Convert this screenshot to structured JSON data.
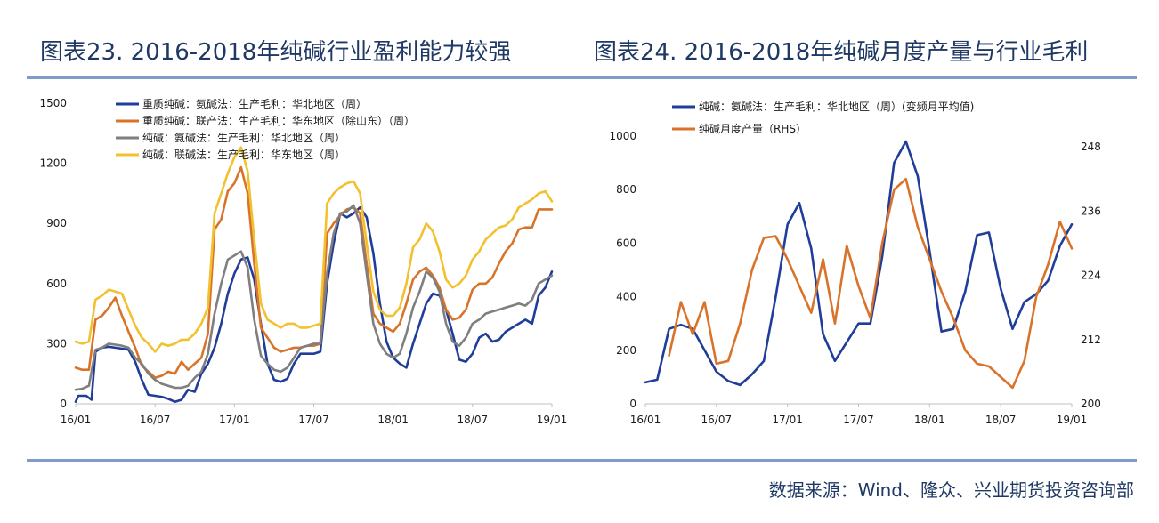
{
  "titles": {
    "left": "图表23. 2016-2018年纯碱行业盈利能力较强",
    "right": "图表24. 2016-2018年纯碱月度产量与行业毛利"
  },
  "source": "数据来源：Wind、隆众、兴业期货投资咨询部",
  "chart_data": [
    {
      "type": "line",
      "title": "图表23. 2016-2018年纯碱行业盈利能力较强",
      "x_labels": [
        "16/01",
        "16/07",
        "17/01",
        "17/07",
        "18/01",
        "18/07",
        "19/01"
      ],
      "x_range": [
        0,
        36
      ],
      "ylim": [
        0,
        1500
      ],
      "yticks": [
        0,
        300,
        600,
        900,
        1200,
        1500
      ],
      "legend_position": "top-left",
      "series": [
        {
          "name": "重质纯碱：氨碱法：生产毛利：华北地区（周）",
          "color": "#1f3d99",
          "x": [
            0,
            0.2,
            0.8,
            1.2,
            1.5,
            2,
            2.5,
            3,
            3.5,
            4,
            4.5,
            5,
            5.5,
            6,
            6.5,
            7,
            7.5,
            8,
            8.5,
            9,
            9.5,
            10,
            10.5,
            11,
            11.5,
            12,
            12.5,
            13,
            13.5,
            14,
            14.5,
            15,
            15.5,
            16,
            16.5,
            17,
            17.5,
            18,
            18.5,
            19,
            19.5,
            20,
            20.5,
            21,
            21.5,
            22,
            22.5,
            23,
            23.5,
            24,
            24.5,
            25,
            25.5,
            26,
            26.5,
            27,
            27.5,
            28,
            28.5,
            29,
            29.5,
            30,
            30.5,
            31,
            31.5,
            32,
            32.5,
            33,
            33.5,
            34,
            34.5,
            35,
            35.5,
            36
          ],
          "y": [
            10,
            40,
            40,
            20,
            260,
            280,
            285,
            280,
            275,
            270,
            210,
            120,
            45,
            40,
            35,
            25,
            10,
            20,
            70,
            60,
            150,
            200,
            280,
            400,
            550,
            650,
            720,
            730,
            620,
            400,
            200,
            120,
            110,
            125,
            200,
            250,
            250,
            250,
            260,
            600,
            800,
            950,
            930,
            950,
            980,
            930,
            750,
            500,
            310,
            230,
            200,
            180,
            300,
            400,
            500,
            550,
            540,
            470,
            350,
            220,
            210,
            250,
            330,
            350,
            310,
            320,
            360,
            380,
            400,
            420,
            400,
            540,
            580,
            660
          ]
        },
        {
          "name": "重质纯碱：联产法：生产毛利：华东地区（除山东）（周）",
          "color": "#d9732a",
          "x": [
            0,
            0.5,
            1,
            1.5,
            2,
            2.5,
            3,
            3.5,
            4,
            4.5,
            5,
            5.5,
            6,
            6.5,
            7,
            7.5,
            8,
            8.5,
            9,
            9.5,
            10,
            10.5,
            11,
            11.5,
            12,
            12.5,
            13,
            13.5,
            14,
            14.5,
            15,
            15.5,
            16,
            16.5,
            17,
            17.5,
            18,
            18.5,
            19,
            19.5,
            20,
            20.5,
            21,
            21.5,
            22,
            22.5,
            23,
            23.5,
            24,
            24.5,
            25,
            25.5,
            26,
            26.5,
            27,
            27.5,
            28,
            28.5,
            29,
            29.5,
            30,
            30.5,
            31,
            31.5,
            32,
            32.5,
            33,
            33.5,
            34,
            34.5,
            35,
            35.5,
            36
          ],
          "y": [
            180,
            170,
            170,
            420,
            440,
            480,
            530,
            440,
            360,
            280,
            190,
            160,
            130,
            140,
            160,
            150,
            210,
            170,
            200,
            230,
            350,
            870,
            920,
            1060,
            1100,
            1180,
            1050,
            700,
            380,
            330,
            280,
            260,
            270,
            280,
            280,
            290,
            290,
            300,
            850,
            900,
            940,
            970,
            980,
            950,
            700,
            450,
            400,
            380,
            360,
            400,
            500,
            620,
            660,
            680,
            640,
            580,
            470,
            420,
            430,
            470,
            570,
            600,
            600,
            630,
            700,
            760,
            800,
            870,
            880,
            880,
            970,
            970,
            970
          ]
        },
        {
          "name": "纯碱：氨碱法：生产毛利：华北地区（周）",
          "color": "#7f7f7f",
          "x": [
            0,
            0.5,
            1,
            1.5,
            2,
            2.5,
            3,
            3.5,
            4,
            4.5,
            5,
            5.5,
            6,
            6.5,
            7,
            7.5,
            8,
            8.5,
            9,
            9.5,
            10,
            10.5,
            11,
            11.5,
            12,
            12.5,
            13,
            13.5,
            14,
            14.5,
            15,
            15.5,
            16,
            16.5,
            17,
            17.5,
            18,
            18.5,
            19,
            19.5,
            20,
            20.5,
            21,
            21.5,
            22,
            22.5,
            23,
            23.5,
            24,
            24.5,
            25,
            25.5,
            26,
            26.5,
            27,
            27.5,
            28,
            28.5,
            29,
            29.5,
            30,
            30.5,
            31,
            31.5,
            32,
            32.5,
            33,
            33.5,
            34,
            34.5,
            35,
            35.5,
            36
          ],
          "y": [
            70,
            75,
            90,
            270,
            280,
            300,
            295,
            290,
            280,
            230,
            200,
            150,
            120,
            100,
            90,
            80,
            80,
            90,
            130,
            160,
            250,
            450,
            600,
            720,
            740,
            760,
            680,
            420,
            240,
            200,
            170,
            160,
            180,
            230,
            280,
            290,
            300,
            300,
            650,
            850,
            950,
            960,
            990,
            900,
            650,
            400,
            300,
            250,
            230,
            250,
            350,
            480,
            560,
            660,
            630,
            560,
            400,
            310,
            290,
            330,
            400,
            420,
            450,
            460,
            470,
            480,
            490,
            500,
            490,
            520,
            600,
            620,
            640
          ]
        },
        {
          "name": "纯碱：联碱法：生产毛利：华东地区（周）",
          "color": "#f2c12e",
          "x": [
            0,
            0.5,
            1,
            1.5,
            2,
            2.5,
            3,
            3.5,
            4,
            4.5,
            5,
            5.5,
            6,
            6.5,
            7,
            7.5,
            8,
            8.5,
            9,
            9.5,
            10,
            10.5,
            11,
            11.5,
            12,
            12.5,
            13,
            13.5,
            14,
            14.5,
            15,
            15.5,
            16,
            16.5,
            17,
            17.5,
            18,
            18.5,
            19,
            19.5,
            20,
            20.5,
            21,
            21.5,
            22,
            22.5,
            23,
            23.5,
            24,
            24.5,
            25,
            25.5,
            26,
            26.5,
            27,
            27.5,
            28,
            28.5,
            29,
            29.5,
            30,
            30.5,
            31,
            31.5,
            32,
            32.5,
            33,
            33.5,
            34,
            34.5,
            35,
            35.5,
            36
          ],
          "y": [
            310,
            300,
            310,
            520,
            540,
            570,
            560,
            550,
            470,
            390,
            330,
            300,
            260,
            300,
            290,
            300,
            320,
            320,
            350,
            400,
            480,
            950,
            1050,
            1150,
            1230,
            1280,
            1160,
            820,
            500,
            420,
            400,
            380,
            400,
            400,
            380,
            380,
            390,
            400,
            1000,
            1050,
            1080,
            1100,
            1110,
            1050,
            800,
            560,
            470,
            440,
            440,
            480,
            600,
            780,
            820,
            900,
            860,
            760,
            620,
            580,
            600,
            640,
            720,
            760,
            820,
            850,
            880,
            890,
            920,
            980,
            1000,
            1020,
            1050,
            1060,
            1010
          ]
        }
      ]
    },
    {
      "type": "line",
      "title": "图表24. 2016-2018年纯碱月度产量与行业毛利",
      "x_labels": [
        "16/01",
        "16/07",
        "17/01",
        "17/07",
        "18/01",
        "18/07",
        "19/01"
      ],
      "x_range": [
        0,
        36
      ],
      "ylim": [
        0,
        1000
      ],
      "yticks": [
        0,
        200,
        400,
        600,
        800,
        1000
      ],
      "y2lim": [
        200,
        250
      ],
      "y2ticks": [
        200,
        212,
        224,
        236,
        248
      ],
      "legend_position": "top-left",
      "series": [
        {
          "name": "纯碱：氨碱法：生产毛利：华北地区（周）(变频月平均值)",
          "color": "#1f3d99",
          "axis": "left",
          "x": [
            0,
            1,
            2,
            3,
            4,
            5,
            6,
            7,
            8,
            9,
            10,
            11,
            12,
            13,
            14,
            15,
            16,
            17,
            18,
            19,
            20,
            21,
            22,
            23,
            24,
            25,
            26,
            27,
            28,
            29,
            30,
            31,
            32,
            33,
            34,
            35,
            36
          ],
          "y": [
            80,
            90,
            280,
            295,
            280,
            200,
            120,
            85,
            70,
            110,
            160,
            400,
            670,
            750,
            580,
            260,
            160,
            230,
            300,
            300,
            550,
            900,
            980,
            850,
            570,
            270,
            280,
            420,
            630,
            640,
            430,
            280,
            380,
            410,
            460,
            590,
            670
          ]
        },
        {
          "name": "纯碱月度产量（RHS）",
          "color": "#d9732a",
          "axis": "right",
          "x": [
            2,
            3,
            4,
            5,
            6,
            7,
            8,
            9,
            10,
            11,
            12,
            13,
            14,
            15,
            16,
            17,
            18,
            19,
            20,
            21,
            22,
            23,
            24,
            25,
            26,
            27,
            28,
            29,
            30,
            31,
            32,
            33,
            34,
            35,
            36
          ],
          "y": [
            209,
            219,
            213,
            219,
            207.5,
            208,
            215,
            225,
            231,
            231.3,
            227,
            222,
            217,
            227,
            215,
            229.5,
            222,
            216,
            230,
            240,
            242,
            233,
            227,
            221,
            216,
            210,
            207.5,
            207,
            205,
            203,
            208,
            220,
            226,
            234,
            229
          ]
        }
      ]
    }
  ]
}
